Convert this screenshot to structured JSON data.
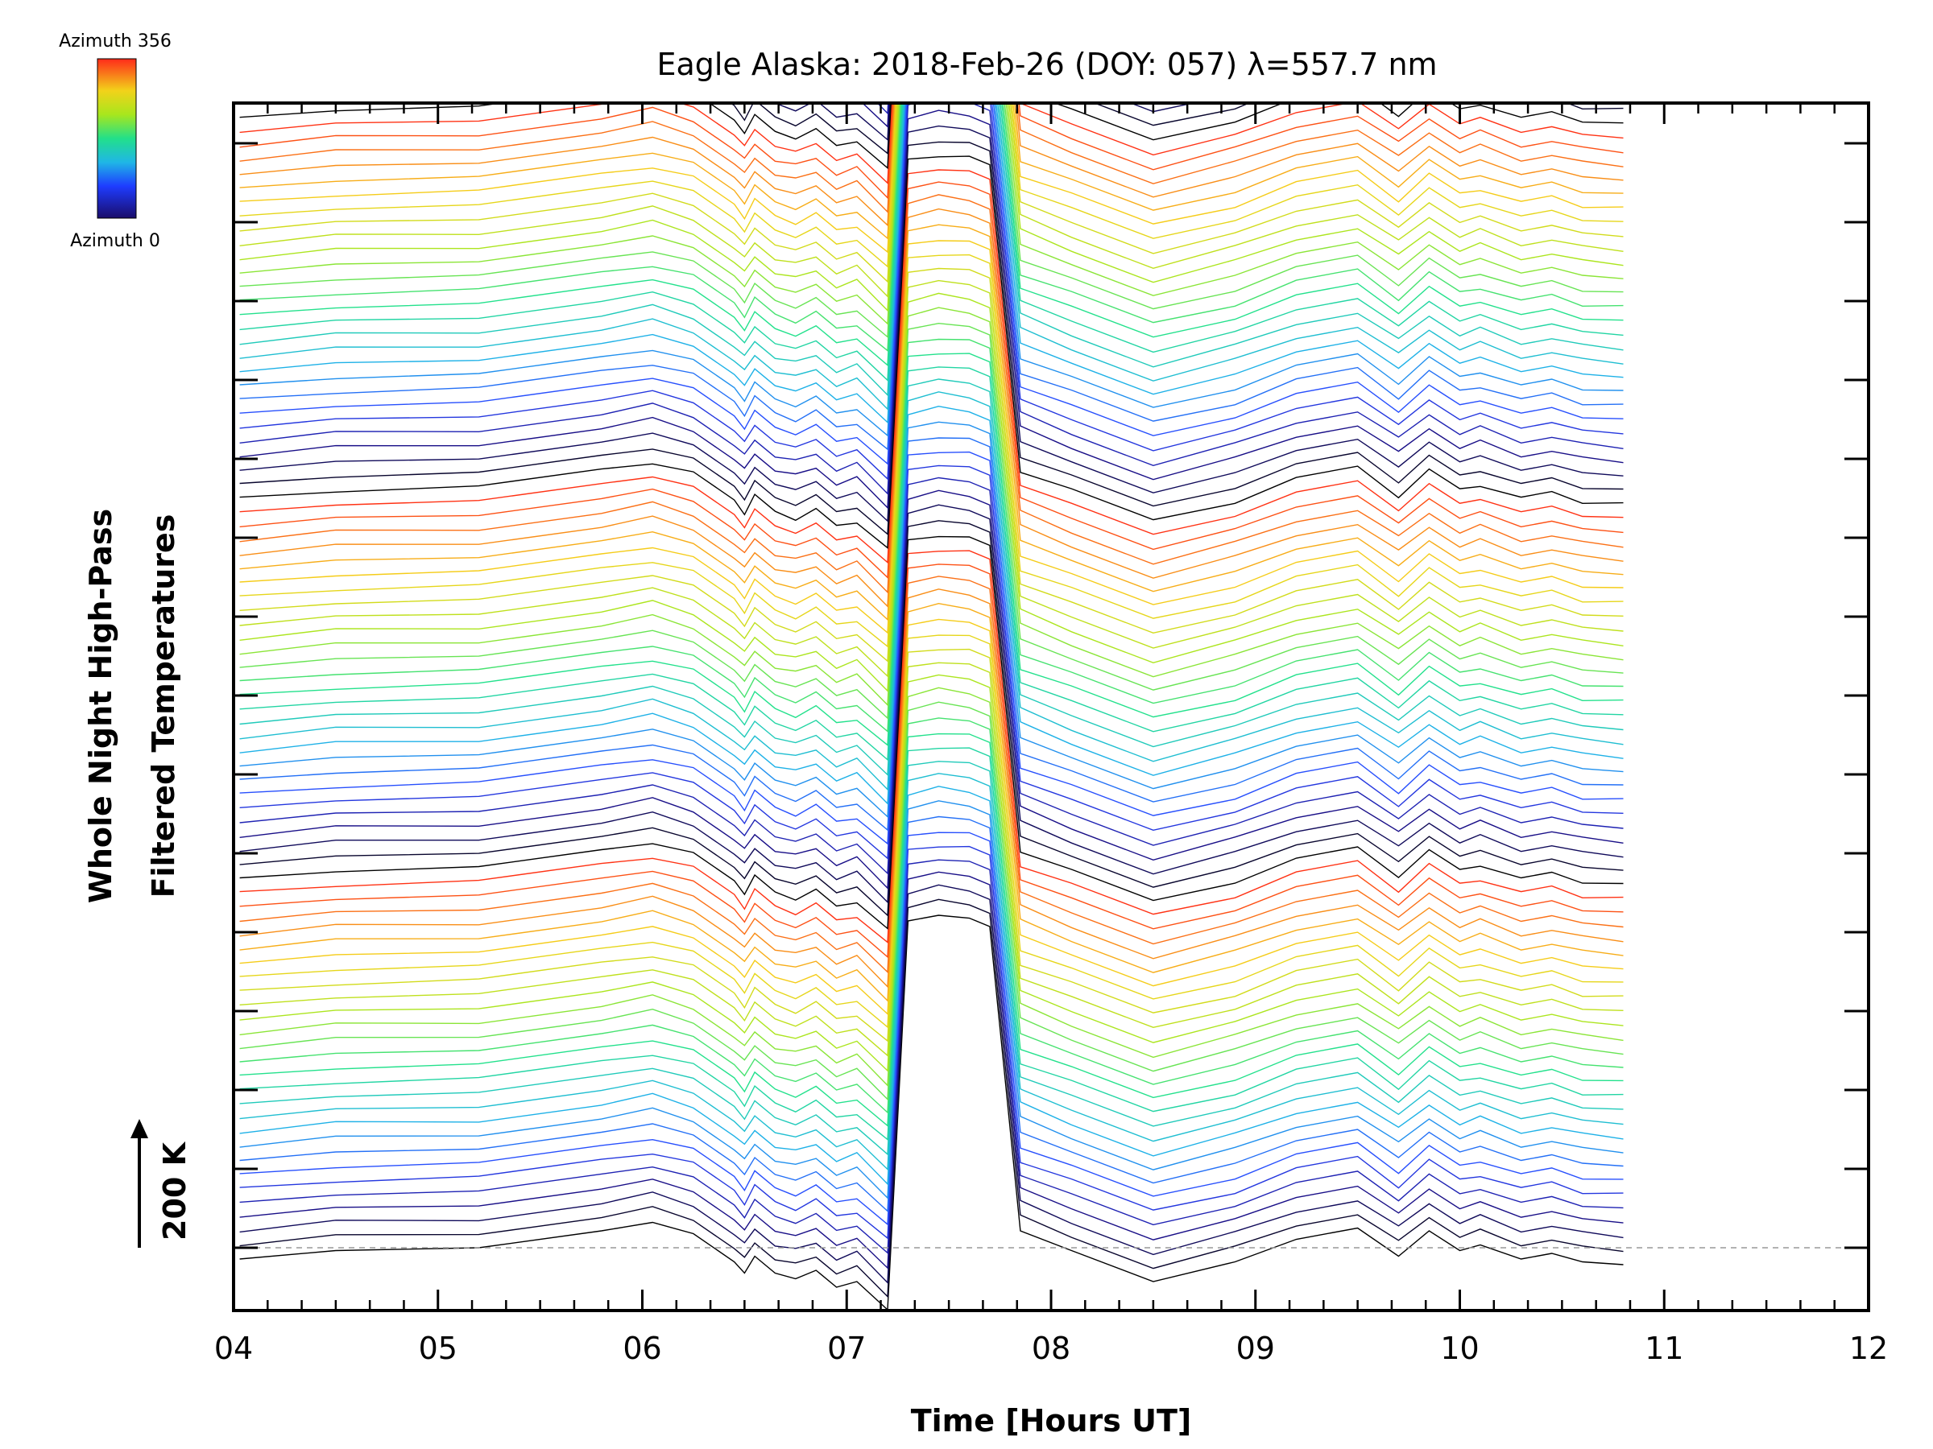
{
  "chart_data": {
    "type": "line",
    "title": "Eagle Alaska: 2018-Feb-26 (DOY: 057) λ=557.7 nm",
    "xlabel": "Time [Hours UT]",
    "ylabel_lines": [
      "Whole Night High-Pass",
      "Filtered Temperatures"
    ],
    "scale_bar_label": "200 K",
    "xlim": [
      4,
      12
    ],
    "x_ticks": [
      "04",
      "05",
      "06",
      "07",
      "08",
      "09",
      "10",
      "11",
      "12"
    ],
    "y_tick_count": 16,
    "grid": false,
    "legend": "colorbar, top-left",
    "colorbar": {
      "top_label": "Azimuth 356",
      "bottom_label": "Azimuth 0",
      "colormap": "rainbow"
    },
    "series_count": 142,
    "offset_per_series_K": 25,
    "profile_x": [
      4.03,
      4.5,
      5.2,
      5.8,
      6.05,
      6.25,
      6.45,
      6.5,
      6.55,
      6.65,
      6.75,
      6.85,
      6.95,
      7.05,
      7.2,
      7.3,
      7.45,
      7.6,
      7.7,
      7.85,
      8.1,
      8.5,
      8.9,
      9.2,
      9.5,
      9.7,
      9.85,
      10.0,
      10.1,
      10.3,
      10.45,
      10.6,
      10.8
    ],
    "profile_y_K": [
      -20,
      -5,
      0,
      30,
      45,
      25,
      -25,
      -45,
      -15,
      -45,
      -55,
      -40,
      -70,
      -60,
      -110,
      580,
      590,
      585,
      570,
      30,
      -5,
      -60,
      -25,
      15,
      35,
      -15,
      30,
      -5,
      5,
      -20,
      -10,
      -25,
      -30
    ],
    "colors": {
      "background": "#ffffff",
      "axes": "#000000",
      "baseline": "#999999"
    }
  }
}
